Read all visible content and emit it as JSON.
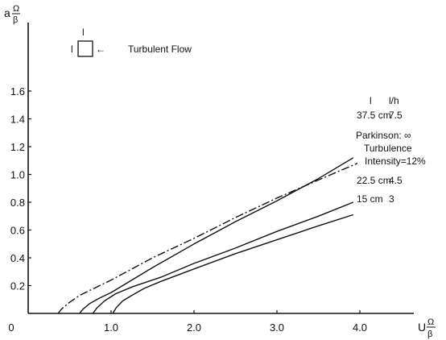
{
  "chart_data": {
    "type": "line",
    "xlabel": {
      "main": "U",
      "num": "Ω",
      "den": "β"
    },
    "ylabel": {
      "main": "a",
      "num": "Ω",
      "den": "β"
    },
    "xlim": [
      0,
      4.6
    ],
    "ylim": [
      0,
      1.8
    ],
    "x_ticks": [
      "0",
      "1.0",
      "2.0",
      "3.0",
      "4.0"
    ],
    "y_ticks": [
      "0.2",
      "0.4",
      "0.6",
      "0.8",
      "1.0",
      "1.2",
      "1.4",
      "1.6"
    ],
    "legend_box": {
      "top_label": "l",
      "left_label": "l",
      "arrow": "←",
      "text": "Turbulent Flow"
    },
    "column_headers": {
      "l": "l",
      "lh": "l/h"
    },
    "series": [
      {
        "name": "37.5 cm",
        "lh": "7.5",
        "style": "solid",
        "x": [
          0.62,
          0.66,
          0.74,
          0.86,
          1.0,
          1.5,
          2.0,
          2.5,
          3.0,
          3.5,
          3.92
        ],
        "y": [
          0.0,
          0.03,
          0.07,
          0.11,
          0.15,
          0.33,
          0.5,
          0.66,
          0.81,
          0.97,
          1.12
        ]
      },
      {
        "name": "Parkinson: ∞",
        "lh": "",
        "note": "Turbulence Intensity=12%",
        "style": "dashdot",
        "x": [
          0.36,
          0.4,
          0.5,
          0.62,
          1.0,
          1.5,
          2.0,
          2.5,
          3.0,
          3.5,
          3.97
        ],
        "y": [
          0.0,
          0.03,
          0.08,
          0.13,
          0.24,
          0.4,
          0.54,
          0.69,
          0.83,
          0.96,
          1.08
        ]
      },
      {
        "name": "22.5 cm",
        "lh": "4.5",
        "style": "solid",
        "x": [
          0.78,
          0.83,
          0.92,
          1.05,
          1.25,
          1.6,
          2.0,
          2.5,
          3.0,
          3.5,
          3.92
        ],
        "y": [
          0.0,
          0.04,
          0.09,
          0.14,
          0.19,
          0.26,
          0.36,
          0.47,
          0.59,
          0.7,
          0.8
        ]
      },
      {
        "name": "15 cm",
        "lh": "3",
        "style": "solid",
        "x": [
          1.02,
          1.06,
          1.14,
          1.25,
          1.4,
          1.6,
          2.0,
          2.5,
          3.0,
          3.5,
          3.92
        ],
        "y": [
          0.0,
          0.04,
          0.09,
          0.13,
          0.18,
          0.23,
          0.32,
          0.43,
          0.53,
          0.63,
          0.71
        ]
      }
    ]
  }
}
